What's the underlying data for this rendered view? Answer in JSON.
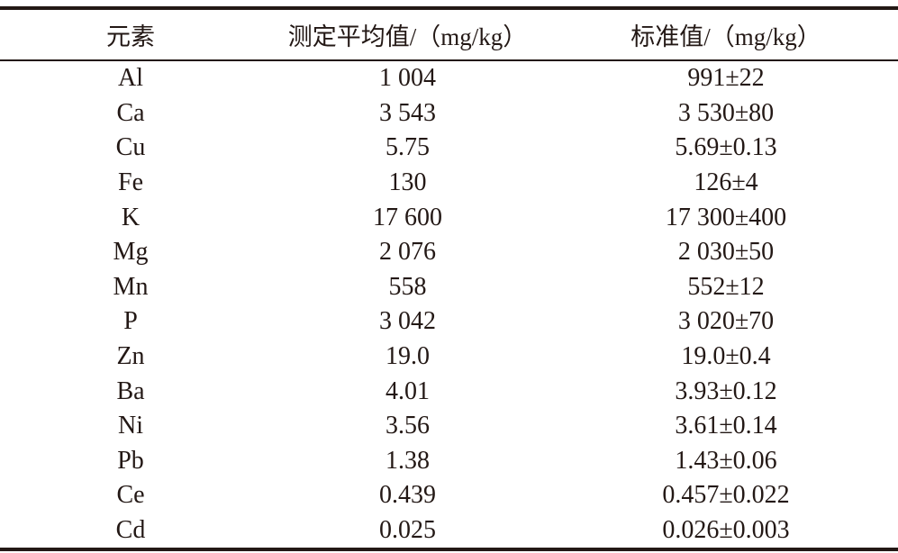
{
  "table": {
    "header": [
      "元素",
      "测定平均值/（mg/kg）",
      "标准值/（mg/kg）"
    ],
    "rows": [
      [
        "Al",
        "1 004",
        "991±22"
      ],
      [
        "Ca",
        "3 543",
        "3 530±80"
      ],
      [
        "Cu",
        "5.75",
        "5.69±0.13"
      ],
      [
        "Fe",
        "130",
        "126±4"
      ],
      [
        "K",
        "17 600",
        "17 300±400"
      ],
      [
        "Mg",
        "2 076",
        "2 030±50"
      ],
      [
        "Mn",
        "558",
        "552±12"
      ],
      [
        "P",
        "3 042",
        "3 020±70"
      ],
      [
        "Zn",
        "19.0",
        "19.0±0.4"
      ],
      [
        "Ba",
        "4.01",
        "3.93±0.12"
      ],
      [
        "Ni",
        "3.56",
        "3.61±0.14"
      ],
      [
        "Pb",
        "1.38",
        "1.43±0.06"
      ],
      [
        "Ce",
        "0.439",
        "0.457±0.022"
      ],
      [
        "Cd",
        "0.025",
        "0.026±0.003"
      ]
    ]
  }
}
